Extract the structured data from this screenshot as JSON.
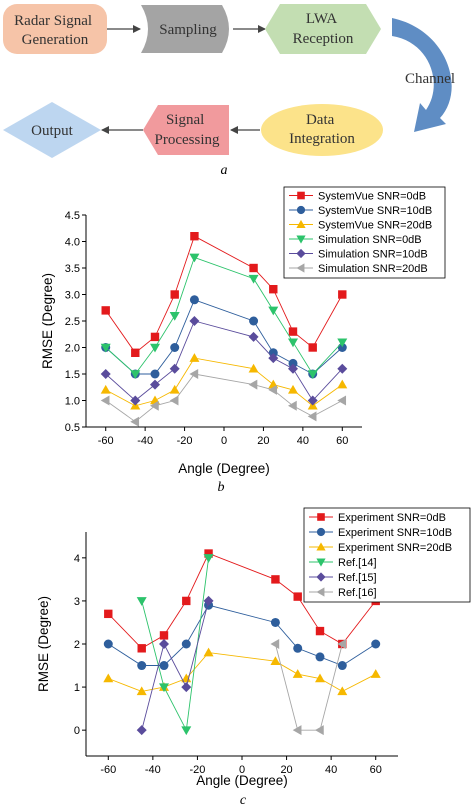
{
  "flow": {
    "radar": "Radar Signal Generation",
    "radar_lines": [
      "Radar Signal",
      "Generation"
    ],
    "sampling": "Sampling",
    "lwa": "LWA Reception",
    "lwa_lines": [
      "LWA",
      "Reception"
    ],
    "channel": "Channel",
    "integration": "Data Integration",
    "integration_lines": [
      "Data",
      "Integration"
    ],
    "processing": "Signal Processing",
    "processing_lines": [
      "Signal",
      "Processing"
    ],
    "output": "Output",
    "colors": {
      "radar": "#F6C4A8",
      "sampling": "#A4A4A4",
      "lwa": "#C3DEB2",
      "integration": "#FCE38A",
      "processing": "#F19A9D",
      "output": "#BDD6F0",
      "channel_arrow": "#5F8DC4"
    }
  },
  "captions": {
    "a": "a",
    "b": "b",
    "c": "c"
  },
  "chart_data": [
    {
      "type": "line",
      "xlabel": "Angle (Degree)",
      "ylabel": "RMSE (Degree)",
      "xlim": [
        -70,
        70
      ],
      "ylim": [
        0.5,
        4.5
      ],
      "xticks": [
        -60,
        -40,
        -20,
        0,
        20,
        40,
        60
      ],
      "yticks": [
        0.5,
        1.0,
        1.5,
        2.0,
        2.5,
        3.0,
        3.5,
        4.0,
        4.5
      ],
      "ytick_labels": [
        "0.5",
        "1.0",
        "1.5",
        "2.0",
        "2.5",
        "3.0",
        "3.5",
        "4.0",
        "4.5"
      ],
      "legend_position": "top-right",
      "x": [
        -60,
        -45,
        -35,
        -25,
        -15,
        15,
        25,
        35,
        45,
        60
      ],
      "series": [
        {
          "name": "SystemVue SNR=0dB",
          "color": "#E31A1C",
          "marker": "square",
          "values": [
            2.7,
            1.9,
            2.2,
            3.0,
            4.1,
            3.5,
            3.1,
            2.3,
            2.0,
            3.0
          ]
        },
        {
          "name": "SystemVue SNR=10dB",
          "color": "#2E5E9C",
          "marker": "circle",
          "values": [
            2.0,
            1.5,
            1.5,
            2.0,
            2.9,
            2.5,
            1.9,
            1.7,
            1.5,
            2.0
          ]
        },
        {
          "name": "SystemVue SNR=20dB",
          "color": "#F6B800",
          "marker": "triangle-up",
          "values": [
            1.2,
            0.9,
            1.0,
            1.2,
            1.8,
            1.6,
            1.3,
            1.2,
            0.9,
            1.3
          ]
        },
        {
          "name": "Simulation SNR=0dB",
          "color": "#2CC36B",
          "marker": "triangle-down",
          "values": [
            2.0,
            1.5,
            2.0,
            2.6,
            3.7,
            3.3,
            2.7,
            2.1,
            1.5,
            2.1
          ]
        },
        {
          "name": "Simulation SNR=10dB",
          "color": "#5A4C9C",
          "marker": "diamond",
          "values": [
            1.5,
            1.0,
            1.3,
            1.6,
            2.5,
            2.2,
            1.8,
            1.6,
            1.0,
            1.6
          ]
        },
        {
          "name": "Simulation SNR=20dB",
          "color": "#A6A6A6",
          "marker": "triangle-left",
          "values": [
            1.0,
            0.6,
            0.9,
            1.0,
            1.5,
            1.3,
            1.2,
            0.9,
            0.7,
            1.0
          ]
        }
      ]
    },
    {
      "type": "line",
      "xlabel": "Angle (Degree)",
      "ylabel": "RMSE (Degree)",
      "xlim": [
        -70,
        70
      ],
      "ylim": [
        -0.6,
        4.6
      ],
      "xticks": [
        -60,
        -40,
        -20,
        0,
        20,
        40,
        60
      ],
      "yticks": [
        0,
        1,
        2,
        3,
        4
      ],
      "ytick_labels": [
        "0",
        "1",
        "2",
        "3",
        "4"
      ],
      "legend_position": "top-right",
      "series": [
        {
          "name": "Experiment SNR=0dB",
          "color": "#E31A1C",
          "marker": "square",
          "points": [
            [
              -60,
              2.7
            ],
            [
              -45,
              1.9
            ],
            [
              -35,
              2.2
            ],
            [
              -25,
              3.0
            ],
            [
              -15,
              4.1
            ],
            [
              15,
              3.5
            ],
            [
              25,
              3.1
            ],
            [
              35,
              2.3
            ],
            [
              45,
              2.0
            ],
            [
              60,
              3.0
            ]
          ]
        },
        {
          "name": "Experiment SNR=10dB",
          "color": "#2E5E9C",
          "marker": "circle",
          "points": [
            [
              -60,
              2.0
            ],
            [
              -45,
              1.5
            ],
            [
              -35,
              1.5
            ],
            [
              -25,
              2.0
            ],
            [
              -15,
              2.9
            ],
            [
              15,
              2.5
            ],
            [
              25,
              1.9
            ],
            [
              35,
              1.7
            ],
            [
              45,
              1.5
            ],
            [
              60,
              2.0
            ]
          ]
        },
        {
          "name": "Experiment SNR=20dB",
          "color": "#F6B800",
          "marker": "triangle-up",
          "points": [
            [
              -60,
              1.2
            ],
            [
              -45,
              0.9
            ],
            [
              -35,
              1.0
            ],
            [
              -25,
              1.2
            ],
            [
              -15,
              1.8
            ],
            [
              15,
              1.6
            ],
            [
              25,
              1.3
            ],
            [
              35,
              1.2
            ],
            [
              45,
              0.9
            ],
            [
              60,
              1.3
            ]
          ]
        },
        {
          "name": "Ref.[14]",
          "color": "#2CC36B",
          "marker": "triangle-down",
          "points": [
            [
              -45,
              3.0
            ],
            [
              -35,
              1.0
            ],
            [
              -25,
              0.0
            ],
            [
              -15,
              4.0
            ]
          ]
        },
        {
          "name": "Ref.[15]",
          "color": "#5A4C9C",
          "marker": "diamond",
          "points": [
            [
              -45,
              0.0
            ],
            [
              -35,
              2.0
            ],
            [
              -25,
              1.0
            ],
            [
              -15,
              3.0
            ]
          ]
        },
        {
          "name": "Ref.[16]",
          "color": "#A6A6A6",
          "marker": "triangle-left",
          "points": [
            [
              15,
              2.0
            ],
            [
              25,
              0.0
            ],
            [
              35,
              0.0
            ],
            [
              45,
              2.0
            ]
          ]
        }
      ]
    }
  ]
}
